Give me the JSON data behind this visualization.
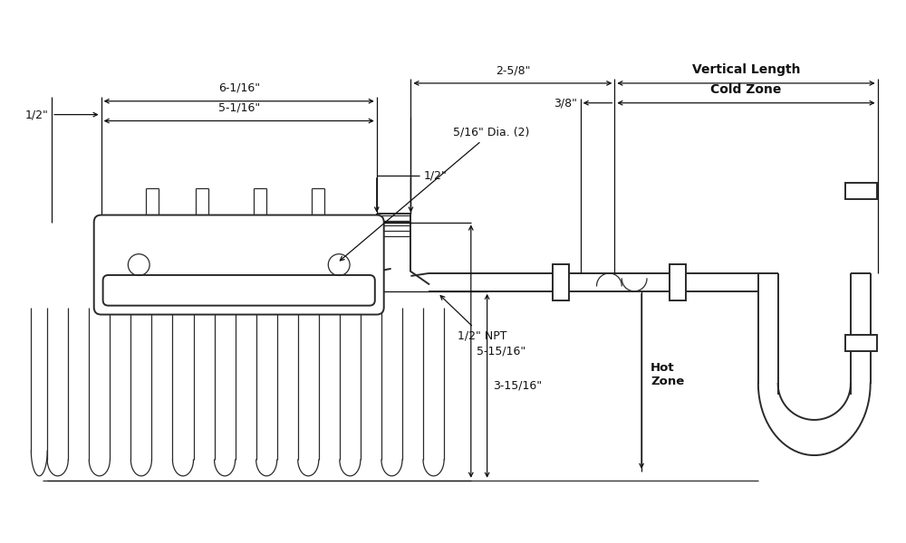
{
  "bg_color": "#ffffff",
  "line_color": "#2a2a2a",
  "lw": 1.4,
  "tlw": 0.9,
  "dim_color": "#111111",
  "annotations": {
    "dim_6_1_16": "6-1/16\"",
    "dim_5_1_16": "5-1/16\"",
    "dim_half_left": "1/2\"",
    "dim_half_right": "1/2\"",
    "dim_5_16_dia": "5/16\" Dia. (2)",
    "dim_2_5_8": "2-5/8\"",
    "dim_3_8": "3/8\"",
    "dim_vert_length": "Vertical Length",
    "dim_cold_zone": "Cold Zone",
    "dim_5_15_16": "5-15/16\"",
    "dim_3_15_16": "3-15/16\"",
    "dim_npt": "1/2\" NPT",
    "dim_hot_zone": "Hot\nZone"
  }
}
